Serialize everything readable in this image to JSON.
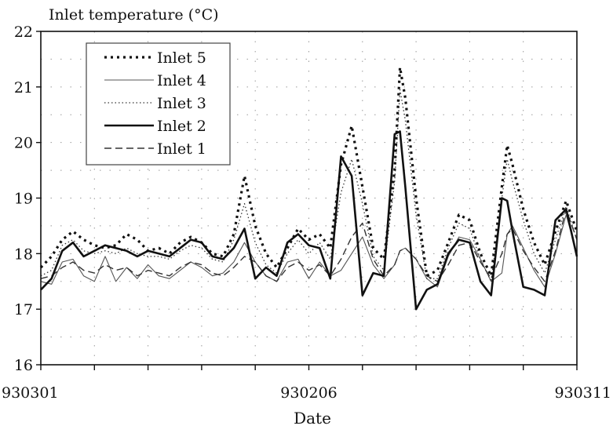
{
  "chart_data": {
    "type": "line",
    "title": "Inlet temperature (°C)",
    "xlabel": "Date",
    "ylabel": "",
    "ylim": [
      16,
      22
    ],
    "yticks": [
      "16",
      "17",
      "18",
      "19",
      "20",
      "21",
      "22"
    ],
    "xlim": [
      0,
      100
    ],
    "x_tick_labels": [
      {
        "label": "930301",
        "x": 0
      },
      {
        "label": "930206",
        "x": 50
      },
      {
        "label": "930311",
        "x": 100
      }
    ],
    "grid": true,
    "legend_position": "top-left",
    "series": [
      {
        "name": "Inlet 5",
        "style": "bold-dotted",
        "color": "#111111",
        "points": [
          [
            0,
            17.75
          ],
          [
            2,
            17.95
          ],
          [
            4,
            18.25
          ],
          [
            6,
            18.4
          ],
          [
            8,
            18.25
          ],
          [
            10,
            18.15
          ],
          [
            12,
            18.1
          ],
          [
            14,
            18.15
          ],
          [
            16,
            18.35
          ],
          [
            18,
            18.25
          ],
          [
            20,
            18.05
          ],
          [
            22,
            18.1
          ],
          [
            24,
            18.0
          ],
          [
            26,
            18.2
          ],
          [
            28,
            18.3
          ],
          [
            30,
            18.2
          ],
          [
            32,
            18.0
          ],
          [
            34,
            17.95
          ],
          [
            36,
            18.35
          ],
          [
            38,
            19.4
          ],
          [
            40,
            18.5
          ],
          [
            42,
            18.0
          ],
          [
            44,
            17.75
          ],
          [
            46,
            18.1
          ],
          [
            48,
            18.45
          ],
          [
            50,
            18.25
          ],
          [
            52,
            18.35
          ],
          [
            54,
            18.1
          ],
          [
            56,
            19.6
          ],
          [
            58,
            20.3
          ],
          [
            60,
            19.2
          ],
          [
            62,
            18.1
          ],
          [
            64,
            17.9
          ],
          [
            66,
            19.5
          ],
          [
            67,
            21.35
          ],
          [
            68,
            20.8
          ],
          [
            70,
            19.0
          ],
          [
            72,
            17.6
          ],
          [
            74,
            17.7
          ],
          [
            76,
            18.2
          ],
          [
            78,
            18.7
          ],
          [
            80,
            18.6
          ],
          [
            82,
            18.0
          ],
          [
            84,
            17.6
          ],
          [
            86,
            19.2
          ],
          [
            87,
            19.95
          ],
          [
            88,
            19.6
          ],
          [
            90,
            18.8
          ],
          [
            92,
            18.2
          ],
          [
            94,
            17.8
          ],
          [
            96,
            18.4
          ],
          [
            98,
            18.95
          ],
          [
            100,
            18.4
          ]
        ]
      },
      {
        "name": "Inlet 4",
        "style": "thin-solid",
        "color": "#555555",
        "points": [
          [
            0,
            17.5
          ],
          [
            2,
            17.45
          ],
          [
            4,
            17.85
          ],
          [
            6,
            17.9
          ],
          [
            8,
            17.6
          ],
          [
            10,
            17.5
          ],
          [
            12,
            17.95
          ],
          [
            14,
            17.5
          ],
          [
            16,
            17.75
          ],
          [
            18,
            17.55
          ],
          [
            20,
            17.8
          ],
          [
            22,
            17.6
          ],
          [
            24,
            17.55
          ],
          [
            26,
            17.7
          ],
          [
            28,
            17.85
          ],
          [
            30,
            17.75
          ],
          [
            32,
            17.6
          ],
          [
            34,
            17.65
          ],
          [
            36,
            17.85
          ],
          [
            38,
            18.2
          ],
          [
            40,
            17.85
          ],
          [
            42,
            17.6
          ],
          [
            44,
            17.5
          ],
          [
            46,
            17.85
          ],
          [
            48,
            17.9
          ],
          [
            50,
            17.55
          ],
          [
            52,
            17.85
          ],
          [
            54,
            17.6
          ],
          [
            56,
            17.7
          ],
          [
            58,
            18.0
          ],
          [
            60,
            18.3
          ],
          [
            62,
            17.8
          ],
          [
            64,
            17.55
          ],
          [
            66,
            17.8
          ],
          [
            67,
            18.05
          ],
          [
            68,
            18.1
          ],
          [
            70,
            17.9
          ],
          [
            72,
            17.55
          ],
          [
            74,
            17.4
          ],
          [
            76,
            17.95
          ],
          [
            78,
            18.3
          ],
          [
            80,
            18.25
          ],
          [
            82,
            17.9
          ],
          [
            84,
            17.5
          ],
          [
            86,
            17.65
          ],
          [
            87,
            18.35
          ],
          [
            88,
            18.5
          ],
          [
            90,
            18.1
          ],
          [
            92,
            17.7
          ],
          [
            94,
            17.4
          ],
          [
            96,
            18.0
          ],
          [
            98,
            18.7
          ],
          [
            100,
            18.0
          ]
        ]
      },
      {
        "name": "Inlet 3",
        "style": "thin-dotted",
        "color": "#333333",
        "points": [
          [
            0,
            17.6
          ],
          [
            2,
            17.7
          ],
          [
            4,
            18.15
          ],
          [
            6,
            18.25
          ],
          [
            8,
            18.05
          ],
          [
            10,
            18.0
          ],
          [
            12,
            18.05
          ],
          [
            14,
            18.0
          ],
          [
            16,
            18.1
          ],
          [
            18,
            18.0
          ],
          [
            20,
            17.95
          ],
          [
            22,
            17.95
          ],
          [
            24,
            17.9
          ],
          [
            26,
            18.05
          ],
          [
            28,
            18.15
          ],
          [
            30,
            18.1
          ],
          [
            32,
            17.9
          ],
          [
            34,
            17.85
          ],
          [
            36,
            18.25
          ],
          [
            38,
            18.9
          ],
          [
            40,
            18.2
          ],
          [
            42,
            17.8
          ],
          [
            44,
            17.65
          ],
          [
            46,
            18.0
          ],
          [
            48,
            18.25
          ],
          [
            50,
            18.0
          ],
          [
            52,
            18.2
          ],
          [
            54,
            17.9
          ],
          [
            56,
            19.1
          ],
          [
            58,
            19.7
          ],
          [
            60,
            18.9
          ],
          [
            62,
            17.95
          ],
          [
            64,
            17.7
          ],
          [
            66,
            19.3
          ],
          [
            67,
            20.95
          ],
          [
            68,
            20.4
          ],
          [
            70,
            18.7
          ],
          [
            72,
            17.55
          ],
          [
            74,
            17.55
          ],
          [
            76,
            18.1
          ],
          [
            78,
            18.55
          ],
          [
            80,
            18.45
          ],
          [
            82,
            17.9
          ],
          [
            84,
            17.5
          ],
          [
            86,
            19.0
          ],
          [
            87,
            19.7
          ],
          [
            88,
            19.3
          ],
          [
            90,
            18.6
          ],
          [
            92,
            18.0
          ],
          [
            94,
            17.65
          ],
          [
            96,
            18.25
          ],
          [
            98,
            18.85
          ],
          [
            100,
            18.25
          ]
        ]
      },
      {
        "name": "Inlet 2",
        "style": "bold-solid",
        "color": "#111111",
        "points": [
          [
            0,
            17.35
          ],
          [
            2,
            17.55
          ],
          [
            4,
            18.05
          ],
          [
            6,
            18.2
          ],
          [
            8,
            17.95
          ],
          [
            10,
            18.05
          ],
          [
            12,
            18.15
          ],
          [
            14,
            18.1
          ],
          [
            16,
            18.05
          ],
          [
            18,
            17.95
          ],
          [
            20,
            18.05
          ],
          [
            22,
            18.0
          ],
          [
            24,
            17.95
          ],
          [
            26,
            18.1
          ],
          [
            28,
            18.25
          ],
          [
            30,
            18.2
          ],
          [
            32,
            17.95
          ],
          [
            34,
            17.9
          ],
          [
            36,
            18.1
          ],
          [
            38,
            18.45
          ],
          [
            40,
            17.55
          ],
          [
            42,
            17.75
          ],
          [
            44,
            17.6
          ],
          [
            46,
            18.2
          ],
          [
            48,
            18.35
          ],
          [
            50,
            18.15
          ],
          [
            52,
            18.1
          ],
          [
            54,
            17.55
          ],
          [
            56,
            19.75
          ],
          [
            58,
            19.4
          ],
          [
            60,
            17.25
          ],
          [
            62,
            17.65
          ],
          [
            64,
            17.6
          ],
          [
            66,
            20.15
          ],
          [
            67,
            20.2
          ],
          [
            68,
            19.2
          ],
          [
            70,
            17.0
          ],
          [
            72,
            17.35
          ],
          [
            74,
            17.45
          ],
          [
            76,
            18.0
          ],
          [
            78,
            18.25
          ],
          [
            80,
            18.2
          ],
          [
            82,
            17.5
          ],
          [
            84,
            17.25
          ],
          [
            86,
            19.0
          ],
          [
            87,
            18.95
          ],
          [
            88,
            18.4
          ],
          [
            90,
            17.4
          ],
          [
            92,
            17.35
          ],
          [
            94,
            17.25
          ],
          [
            96,
            18.6
          ],
          [
            98,
            18.8
          ],
          [
            100,
            17.95
          ]
        ]
      },
      {
        "name": "Inlet 1",
        "style": "dashed",
        "color": "#333333",
        "points": [
          [
            0,
            17.55
          ],
          [
            2,
            17.6
          ],
          [
            4,
            17.75
          ],
          [
            6,
            17.85
          ],
          [
            8,
            17.7
          ],
          [
            10,
            17.65
          ],
          [
            12,
            17.8
          ],
          [
            14,
            17.7
          ],
          [
            16,
            17.75
          ],
          [
            18,
            17.6
          ],
          [
            20,
            17.7
          ],
          [
            22,
            17.65
          ],
          [
            24,
            17.6
          ],
          [
            26,
            17.75
          ],
          [
            28,
            17.85
          ],
          [
            30,
            17.8
          ],
          [
            32,
            17.65
          ],
          [
            34,
            17.6
          ],
          [
            36,
            17.75
          ],
          [
            38,
            17.95
          ],
          [
            40,
            17.85
          ],
          [
            42,
            17.6
          ],
          [
            44,
            17.5
          ],
          [
            46,
            17.75
          ],
          [
            48,
            17.85
          ],
          [
            50,
            17.7
          ],
          [
            52,
            17.8
          ],
          [
            54,
            17.6
          ],
          [
            56,
            17.9
          ],
          [
            58,
            18.3
          ],
          [
            60,
            18.55
          ],
          [
            62,
            17.9
          ],
          [
            64,
            17.6
          ],
          [
            66,
            17.8
          ],
          [
            67,
            18.05
          ],
          [
            68,
            18.1
          ],
          [
            70,
            17.9
          ],
          [
            72,
            17.6
          ],
          [
            74,
            17.5
          ],
          [
            76,
            17.8
          ],
          [
            78,
            18.15
          ],
          [
            80,
            18.2
          ],
          [
            82,
            17.85
          ],
          [
            84,
            17.55
          ],
          [
            86,
            18.0
          ],
          [
            87,
            18.35
          ],
          [
            88,
            18.45
          ],
          [
            90,
            18.05
          ],
          [
            92,
            17.75
          ],
          [
            94,
            17.5
          ],
          [
            96,
            18.05
          ],
          [
            98,
            18.8
          ],
          [
            100,
            18.25
          ]
        ]
      }
    ]
  }
}
